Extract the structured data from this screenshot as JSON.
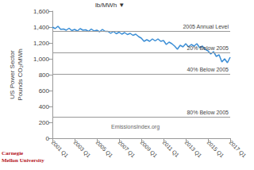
{
  "chart_data": {
    "type": "line",
    "y_label": "US Power Sector\nPounds CO₂/MWh",
    "annotations": [
      "lb/MWh ▼",
      "EmissionsIndex.org",
      "Carnegie\nMellon University"
    ],
    "reference_lines": [
      {
        "label": "2005 Annual Level",
        "value": 1350
      },
      {
        "label": "20% Below 2005",
        "value": 1080
      },
      {
        "label": "40% Below 2005",
        "value": 810
      },
      {
        "label": "80% Below 2005",
        "value": 270
      }
    ],
    "categories": [
      "2001 Q1",
      null,
      null,
      null,
      null,
      null,
      null,
      null,
      "2003 Q1",
      null,
      null,
      null,
      null,
      null,
      null,
      null,
      "2005 Q1",
      null,
      null,
      null,
      null,
      null,
      null,
      null,
      "2007 Q1",
      null,
      null,
      null,
      null,
      null,
      null,
      null,
      "2009 Q1",
      null,
      null,
      null,
      null,
      null,
      null,
      null,
      "2011 Q1",
      null,
      null,
      null,
      null,
      null,
      null,
      null,
      "2013 Q1",
      null,
      null,
      null,
      null,
      null,
      null,
      null,
      "2015 Q1",
      null,
      null,
      null,
      null,
      null,
      null,
      null,
      "2017 Q1"
    ],
    "values": [
      1400,
      1380,
      1410,
      1370,
      1375,
      1360,
      1385,
      1355,
      1370,
      1350,
      1380,
      1360,
      1365,
      1345,
      1375,
      1350,
      1360,
      1340,
      1370,
      1345,
      1345,
      1320,
      1345,
      1315,
      1335,
      1310,
      1330,
      1305,
      1320,
      1295,
      1310,
      1280,
      1260,
      1220,
      1240,
      1220,
      1250,
      1225,
      1250,
      1220,
      1230,
      1180,
      1210,
      1190,
      1160,
      1120,
      1170,
      1150,
      1190,
      1150,
      1180,
      1160,
      1190,
      1140,
      1160,
      1120,
      1100,
      1060,
      1090,
      1030,
      1050,
      960,
      1000,
      950,
      1020
    ],
    "color": "#3d8fd6",
    "ylim": [
      0,
      1600
    ],
    "yticks": [
      0,
      200,
      400,
      600,
      800,
      {
        "value": 1000,
        "label": "1,000"
      },
      {
        "value": 1200,
        "label": "1,200"
      },
      {
        "value": 1400,
        "label": "1,400"
      },
      {
        "value": 1600,
        "label": "1,600"
      }
    ],
    "grid": false
  }
}
